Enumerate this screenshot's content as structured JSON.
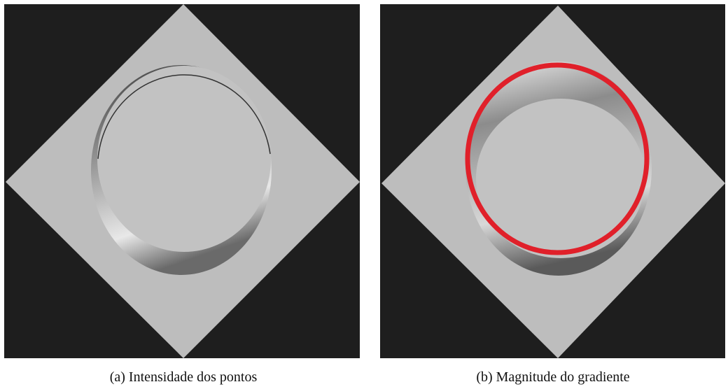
{
  "figures": [
    {
      "caption": "(a) Intensidade dos pontos"
    },
    {
      "caption": "(b) Magnitude do gradiente"
    }
  ]
}
